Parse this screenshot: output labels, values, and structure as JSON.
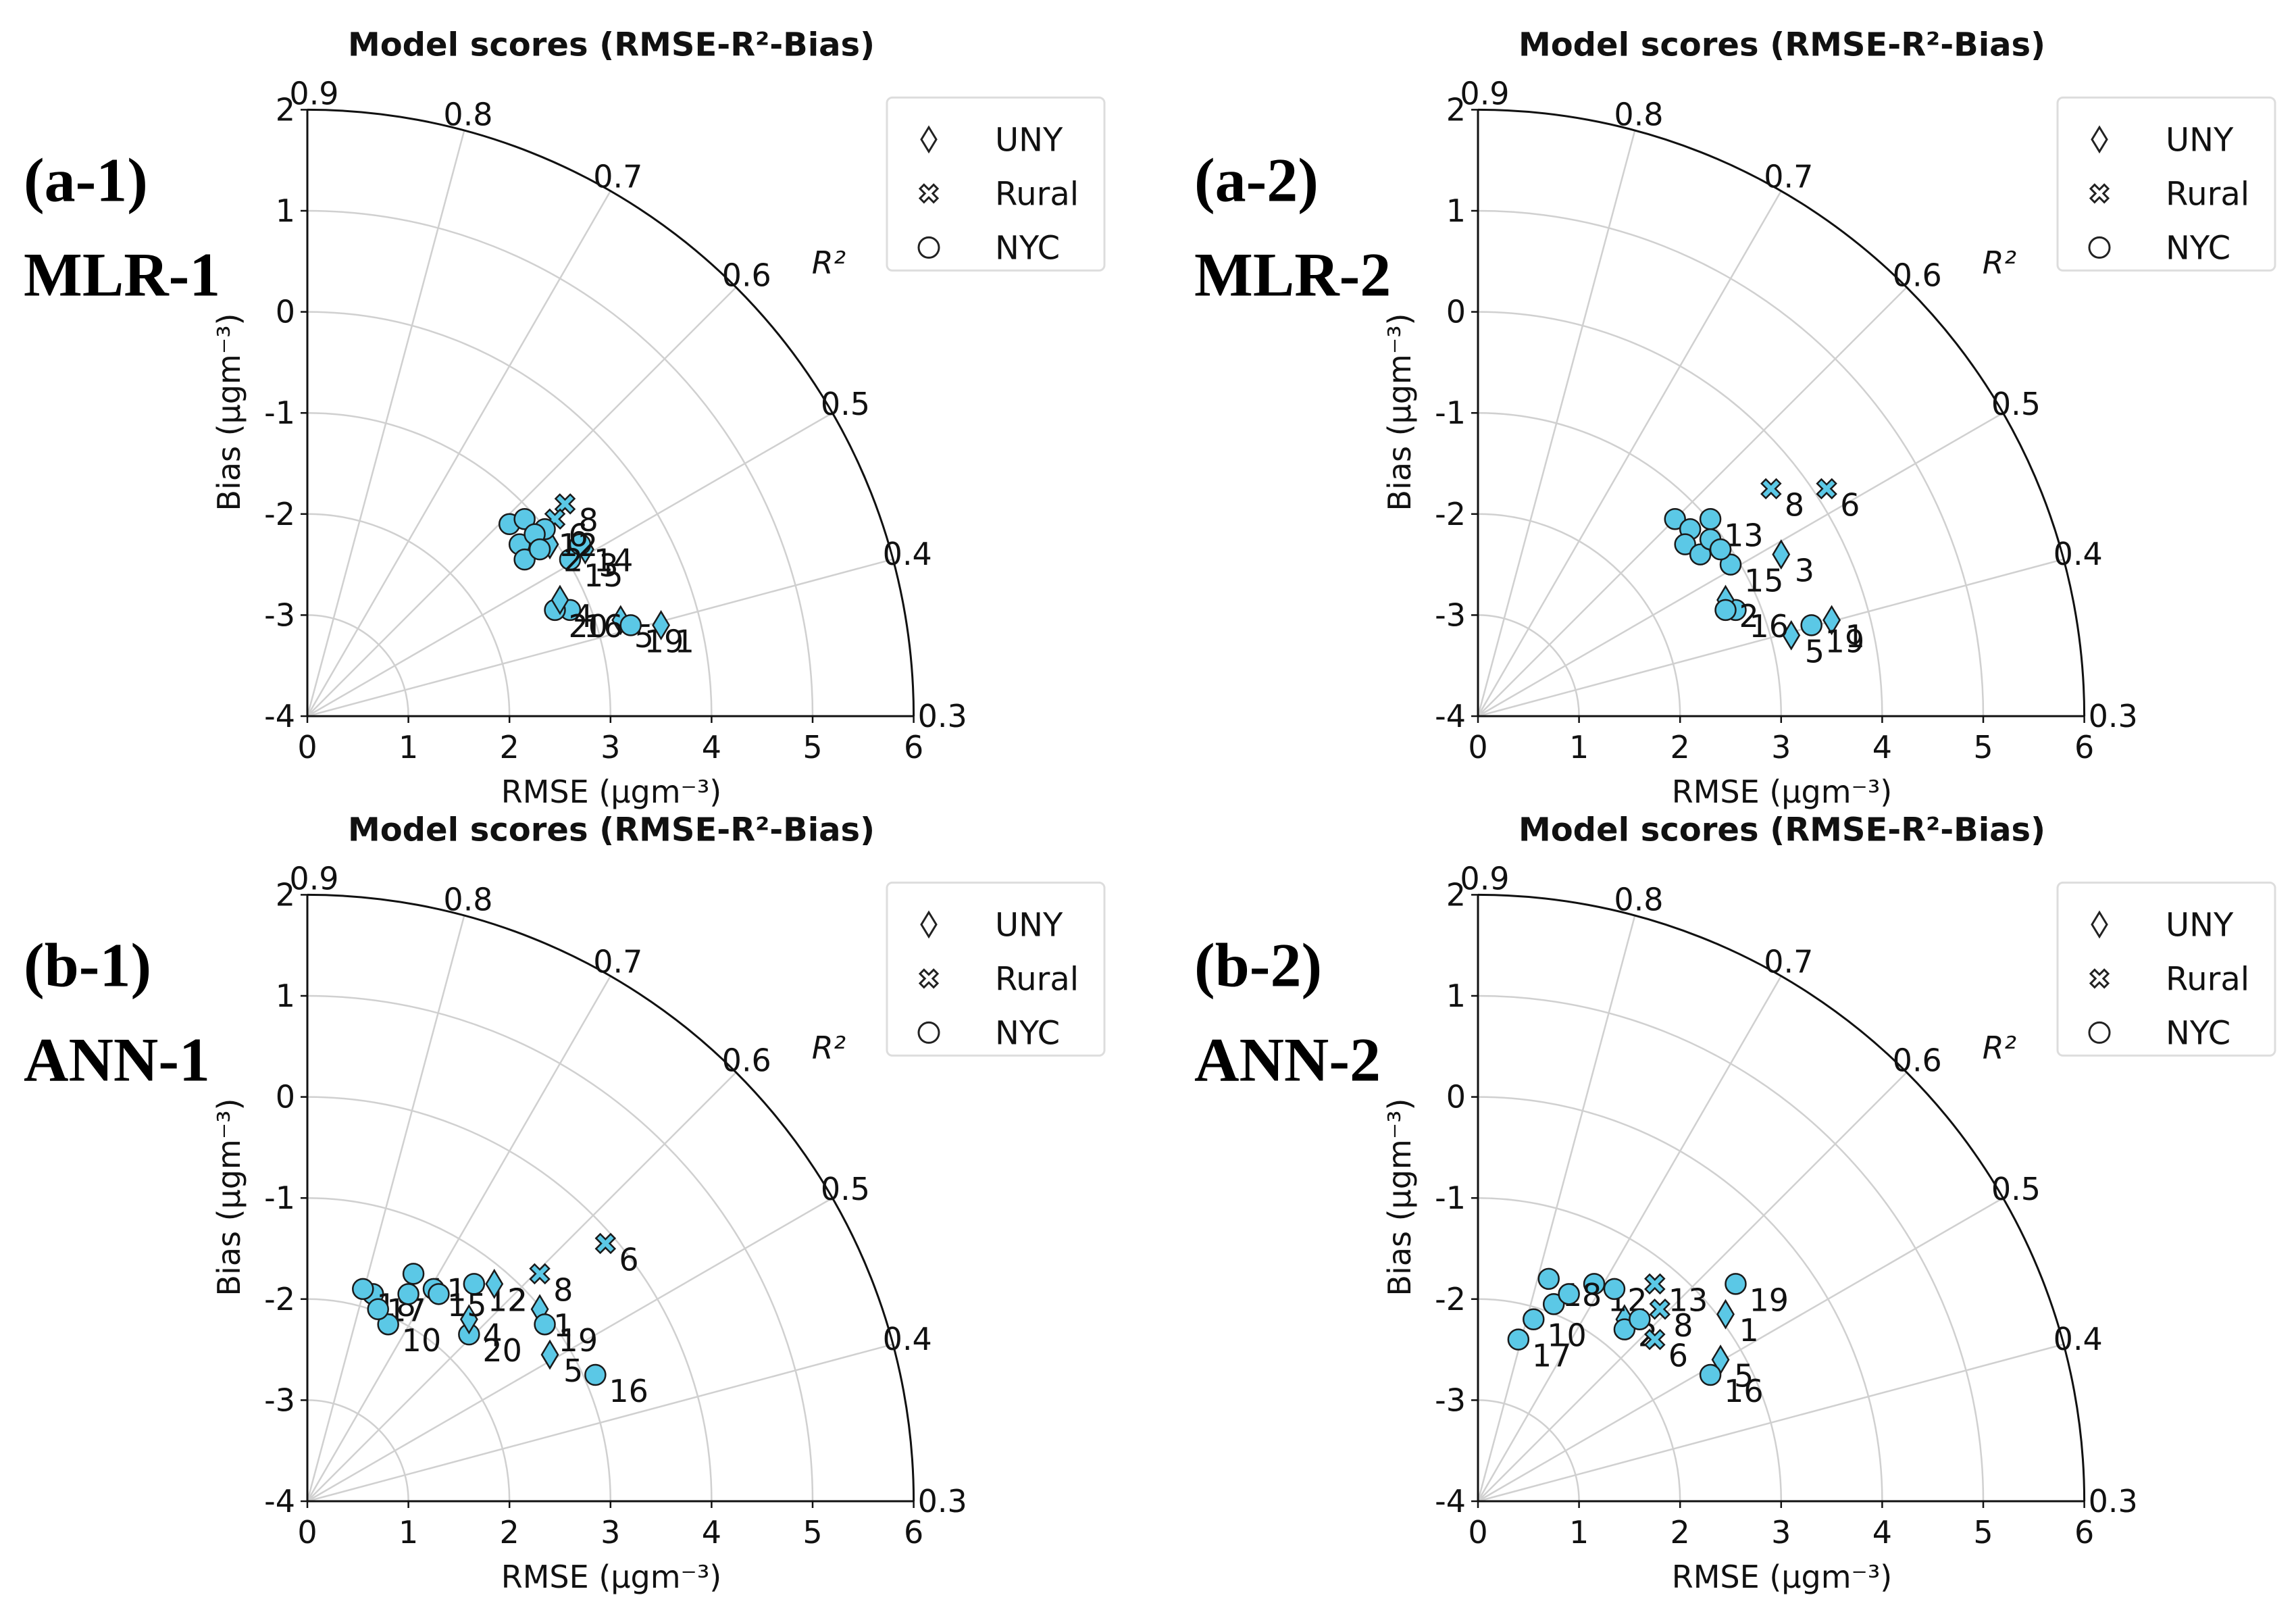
{
  "chart_data": [
    {
      "type": "scatter",
      "panel_label": "(a-1)",
      "model_label": "MLR-1",
      "title": "Model scores (RMSE-R²-Bias)",
      "xlabel": "RMSE (μgm⁻³)",
      "ylabel": "Bias (μgm⁻³)",
      "r2_label": "R²",
      "xlim": [
        0,
        6
      ],
      "ylim": [
        -4,
        2
      ],
      "x_ticks": [
        "0",
        "1",
        "2",
        "3",
        "4",
        "5",
        "6"
      ],
      "y_ticks": [
        "-4",
        "-3",
        "-2",
        "-1",
        "0",
        "1",
        "2"
      ],
      "r2_ticks": [
        "0.9",
        "0.8",
        "0.7",
        "0.6",
        "0.5",
        "0.4",
        "0.3"
      ],
      "legend": [
        "UNY",
        "Rural",
        "NYC"
      ],
      "points": [
        {
          "label": "1",
          "group": "UNY",
          "rmse": 3.5,
          "bias": -3.1
        },
        {
          "label": "5",
          "group": "UNY",
          "rmse": 3.1,
          "bias": -3.05
        },
        {
          "label": "19",
          "group": "NYC",
          "rmse": 3.2,
          "bias": -3.1
        },
        {
          "label": "16",
          "group": "NYC",
          "rmse": 2.6,
          "bias": -2.95
        },
        {
          "label": "20",
          "group": "NYC",
          "rmse": 2.45,
          "bias": -2.95
        },
        {
          "label": "4",
          "group": "UNY",
          "rmse": 2.5,
          "bias": -2.85
        },
        {
          "label": "15",
          "group": "NYC",
          "rmse": 2.6,
          "bias": -2.45
        },
        {
          "label": "3",
          "group": "UNY",
          "rmse": 2.75,
          "bias": -2.35
        },
        {
          "label": "14",
          "group": "NYC",
          "rmse": 2.7,
          "bias": -2.3
        },
        {
          "label": "8",
          "group": "Rural",
          "rmse": 2.55,
          "bias": -1.9
        },
        {
          "label": "6",
          "group": "Rural",
          "rmse": 2.45,
          "bias": -2.05
        },
        {
          "label": "2",
          "group": "UNY",
          "rmse": 2.4,
          "bias": -2.3
        },
        {
          "label": "12",
          "group": "NYC",
          "rmse": 2.35,
          "bias": -2.15
        },
        {
          "label": "",
          "group": "NYC",
          "rmse": 2.0,
          "bias": -2.1
        },
        {
          "label": "",
          "group": "NYC",
          "rmse": 2.15,
          "bias": -2.05
        },
        {
          "label": "",
          "group": "NYC",
          "rmse": 2.1,
          "bias": -2.3
        },
        {
          "label": "",
          "group": "NYC",
          "rmse": 2.15,
          "bias": -2.45
        },
        {
          "label": "",
          "group": "NYC",
          "rmse": 2.25,
          "bias": -2.2
        },
        {
          "label": "",
          "group": "NYC",
          "rmse": 2.3,
          "bias": -2.35
        }
      ]
    },
    {
      "type": "scatter",
      "panel_label": "(a-2)",
      "model_label": "MLR-2",
      "title": "Model scores (RMSE-R²-Bias)",
      "xlabel": "RMSE (μgm⁻³)",
      "ylabel": "Bias (μgm⁻³)",
      "r2_label": "R²",
      "xlim": [
        0,
        6
      ],
      "ylim": [
        -4,
        2
      ],
      "x_ticks": [
        "0",
        "1",
        "2",
        "3",
        "4",
        "5",
        "6"
      ],
      "y_ticks": [
        "-4",
        "-3",
        "-2",
        "-1",
        "0",
        "1",
        "2"
      ],
      "r2_ticks": [
        "0.9",
        "0.8",
        "0.7",
        "0.6",
        "0.5",
        "0.4",
        "0.3"
      ],
      "legend": [
        "UNY",
        "Rural",
        "NYC"
      ],
      "points": [
        {
          "label": "6",
          "group": "Rural",
          "rmse": 3.45,
          "bias": -1.75
        },
        {
          "label": "8",
          "group": "Rural",
          "rmse": 2.9,
          "bias": -1.75
        },
        {
          "label": "1",
          "group": "UNY",
          "rmse": 3.5,
          "bias": -3.05
        },
        {
          "label": "19",
          "group": "NYC",
          "rmse": 3.3,
          "bias": -3.1
        },
        {
          "label": "5",
          "group": "UNY",
          "rmse": 3.1,
          "bias": -3.2
        },
        {
          "label": "16",
          "group": "NYC",
          "rmse": 2.55,
          "bias": -2.95
        },
        {
          "label": "2",
          "group": "UNY",
          "rmse": 2.45,
          "bias": -2.85
        },
        {
          "label": "3",
          "group": "UNY",
          "rmse": 3.0,
          "bias": -2.4
        },
        {
          "label": "15",
          "group": "NYC",
          "rmse": 2.5,
          "bias": -2.5
        },
        {
          "label": "13",
          "group": "NYC",
          "rmse": 2.3,
          "bias": -2.05
        },
        {
          "label": "",
          "group": "NYC",
          "rmse": 1.95,
          "bias": -2.05
        },
        {
          "label": "",
          "group": "NYC",
          "rmse": 2.1,
          "bias": -2.15
        },
        {
          "label": "",
          "group": "NYC",
          "rmse": 2.05,
          "bias": -2.3
        },
        {
          "label": "",
          "group": "NYC",
          "rmse": 2.2,
          "bias": -2.4
        },
        {
          "label": "",
          "group": "NYC",
          "rmse": 2.3,
          "bias": -2.25
        },
        {
          "label": "",
          "group": "NYC",
          "rmse": 2.4,
          "bias": -2.35
        },
        {
          "label": "",
          "group": "NYC",
          "rmse": 2.45,
          "bias": -2.95
        }
      ]
    },
    {
      "type": "scatter",
      "panel_label": "(b-1)",
      "model_label": "ANN-1",
      "title": "Model scores (RMSE-R²-Bias)",
      "xlabel": "RMSE (μgm⁻³)",
      "ylabel": "Bias (μgm⁻³)",
      "r2_label": "R²",
      "xlim": [
        0,
        6
      ],
      "ylim": [
        -4,
        2
      ],
      "x_ticks": [
        "0",
        "1",
        "2",
        "3",
        "4",
        "5",
        "6"
      ],
      "y_ticks": [
        "-4",
        "-3",
        "-2",
        "-1",
        "0",
        "1",
        "2"
      ],
      "r2_ticks": [
        "0.9",
        "0.8",
        "0.7",
        "0.6",
        "0.5",
        "0.4",
        "0.3"
      ],
      "legend": [
        "UNY",
        "Rural",
        "NYC"
      ],
      "points": [
        {
          "label": "6",
          "group": "Rural",
          "rmse": 2.95,
          "bias": -1.45
        },
        {
          "label": "8",
          "group": "Rural",
          "rmse": 2.3,
          "bias": -1.75
        },
        {
          "label": "1",
          "group": "UNY",
          "rmse": 2.3,
          "bias": -2.1
        },
        {
          "label": "19",
          "group": "NYC",
          "rmse": 2.35,
          "bias": -2.25
        },
        {
          "label": "5",
          "group": "UNY",
          "rmse": 2.4,
          "bias": -2.55
        },
        {
          "label": "16",
          "group": "NYC",
          "rmse": 2.85,
          "bias": -2.75
        },
        {
          "label": "20",
          "group": "NYC",
          "rmse": 1.6,
          "bias": -2.35
        },
        {
          "label": "4",
          "group": "UNY",
          "rmse": 1.6,
          "bias": -2.2
        },
        {
          "label": "12",
          "group": "NYC",
          "rmse": 1.65,
          "bias": -1.85
        },
        {
          "label": "2",
          "group": "UNY",
          "rmse": 1.85,
          "bias": -1.85
        },
        {
          "label": "11",
          "group": "NYC",
          "rmse": 1.05,
          "bias": -1.75
        },
        {
          "label": "15",
          "group": "NYC",
          "rmse": 1.25,
          "bias": -1.9
        },
        {
          "label": "17",
          "group": "NYC",
          "rmse": 0.65,
          "bias": -1.95
        },
        {
          "label": "18",
          "group": "NYC",
          "rmse": 0.55,
          "bias": -1.9
        },
        {
          "label": "10",
          "group": "NYC",
          "rmse": 0.8,
          "bias": -2.25
        },
        {
          "label": "",
          "group": "NYC",
          "rmse": 0.7,
          "bias": -2.1
        },
        {
          "label": "",
          "group": "NYC",
          "rmse": 1.0,
          "bias": -1.95
        },
        {
          "label": "",
          "group": "NYC",
          "rmse": 1.3,
          "bias": -1.95
        }
      ]
    },
    {
      "type": "scatter",
      "panel_label": "(b-2)",
      "model_label": "ANN-2",
      "title": "Model scores (RMSE-R²-Bias)",
      "xlabel": "RMSE (μgm⁻³)",
      "ylabel": "Bias (μgm⁻³)",
      "r2_label": "R²",
      "xlim": [
        0,
        6
      ],
      "ylim": [
        -4,
        2
      ],
      "x_ticks": [
        "0",
        "1",
        "2",
        "3",
        "4",
        "5",
        "6"
      ],
      "y_ticks": [
        "-4",
        "-3",
        "-2",
        "-1",
        "0",
        "1",
        "2"
      ],
      "r2_ticks": [
        "0.9",
        "0.8",
        "0.7",
        "0.6",
        "0.5",
        "0.4",
        "0.3"
      ],
      "legend": [
        "UNY",
        "Rural",
        "NYC"
      ],
      "points": [
        {
          "label": "19",
          "group": "NYC",
          "rmse": 2.55,
          "bias": -1.85
        },
        {
          "label": "1",
          "group": "UNY",
          "rmse": 2.45,
          "bias": -2.15
        },
        {
          "label": "5",
          "group": "UNY",
          "rmse": 2.4,
          "bias": -2.6
        },
        {
          "label": "16",
          "group": "NYC",
          "rmse": 2.3,
          "bias": -2.75
        },
        {
          "label": "13",
          "group": "Rural",
          "rmse": 1.75,
          "bias": -1.85
        },
        {
          "label": "2",
          "group": "UNY",
          "rmse": 1.45,
          "bias": -2.2
        },
        {
          "label": "6",
          "group": "Rural",
          "rmse": 1.75,
          "bias": -2.4
        },
        {
          "label": "8",
          "group": "Rural",
          "rmse": 1.8,
          "bias": -2.1
        },
        {
          "label": "12",
          "group": "NYC",
          "rmse": 1.15,
          "bias": -1.85
        },
        {
          "label": "18",
          "group": "NYC",
          "rmse": 0.7,
          "bias": -1.8
        },
        {
          "label": "17",
          "group": "NYC",
          "rmse": 0.4,
          "bias": -2.4
        },
        {
          "label": "10",
          "group": "NYC",
          "rmse": 0.55,
          "bias": -2.2
        },
        {
          "label": "",
          "group": "NYC",
          "rmse": 0.75,
          "bias": -2.05
        },
        {
          "label": "",
          "group": "NYC",
          "rmse": 0.9,
          "bias": -1.95
        },
        {
          "label": "",
          "group": "NYC",
          "rmse": 1.35,
          "bias": -1.9
        },
        {
          "label": "",
          "group": "NYC",
          "rmse": 1.45,
          "bias": -2.3
        },
        {
          "label": "",
          "group": "NYC",
          "rmse": 1.6,
          "bias": -2.2
        }
      ]
    }
  ]
}
